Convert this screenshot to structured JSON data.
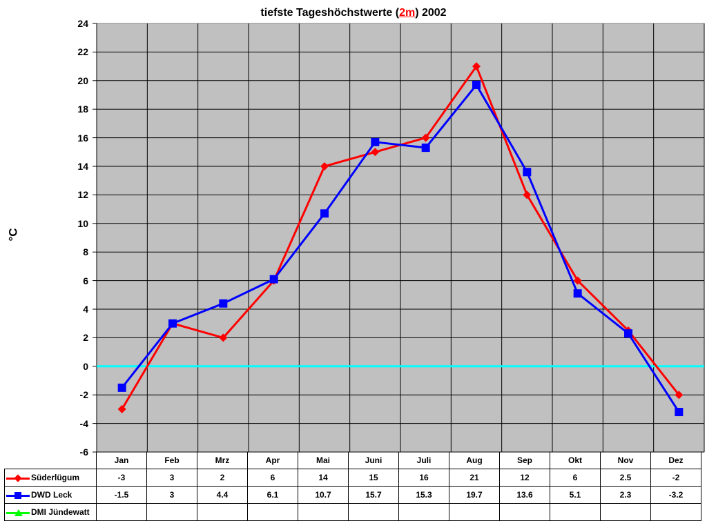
{
  "chart_data": {
    "type": "line",
    "title": "tiefste Tageshöchstwerte (2m) 2002",
    "title_parts": {
      "pre": "tiefste Tageshöchstwerte (",
      "accent": "2m",
      "post": ") 2002"
    },
    "xlabel": "",
    "ylabel": "°C",
    "ylim": [
      -6,
      24
    ],
    "yticks": [
      "24",
      "22",
      "20",
      "18",
      "16",
      "14",
      "12",
      "10",
      "8",
      "6",
      "4",
      "2",
      "0",
      "-2",
      "-4",
      "-6"
    ],
    "categories": [
      "Jan",
      "Feb",
      "Mrz",
      "Apr",
      "Mai",
      "Juni",
      "Juli",
      "Aug",
      "Sep",
      "Okt",
      "Nov",
      "Dez"
    ],
    "series": [
      {
        "name": "Süderlügum",
        "color": "#ff0000",
        "marker": "diamond",
        "values": [
          -3,
          3,
          2,
          6,
          14,
          15,
          16,
          21,
          12,
          6,
          2.5,
          -2
        ],
        "labels": [
          "-3",
          "3",
          "2",
          "6",
          "14",
          "15",
          "16",
          "21",
          "12",
          "6",
          "2.5",
          "-2"
        ]
      },
      {
        "name": "DWD Leck",
        "color": "#0000ff",
        "marker": "square",
        "values": [
          -1.5,
          3,
          4.4,
          6.1,
          10.7,
          15.7,
          15.3,
          19.7,
          13.6,
          5.1,
          2.3,
          -3.2
        ],
        "labels": [
          "-1.5",
          "3",
          "4.4",
          "6.1",
          "10.7",
          "15.7",
          "15.3",
          "19.7",
          "13.6",
          "5.1",
          "2.3",
          "-3.2"
        ]
      },
      {
        "name": "DMI Jündewatt",
        "color": "#00ff00",
        "marker": "triangle",
        "values": [
          null,
          null,
          null,
          null,
          null,
          null,
          null,
          null,
          null,
          null,
          null,
          null
        ],
        "labels": [
          "",
          "",
          "",
          "",
          "",
          "",
          "",
          "",
          "",
          "",
          "",
          ""
        ]
      }
    ],
    "zero_line_color": "#00ffff",
    "plot_background": "#c0c0c0",
    "grid": true,
    "legend_position": "data-table"
  }
}
